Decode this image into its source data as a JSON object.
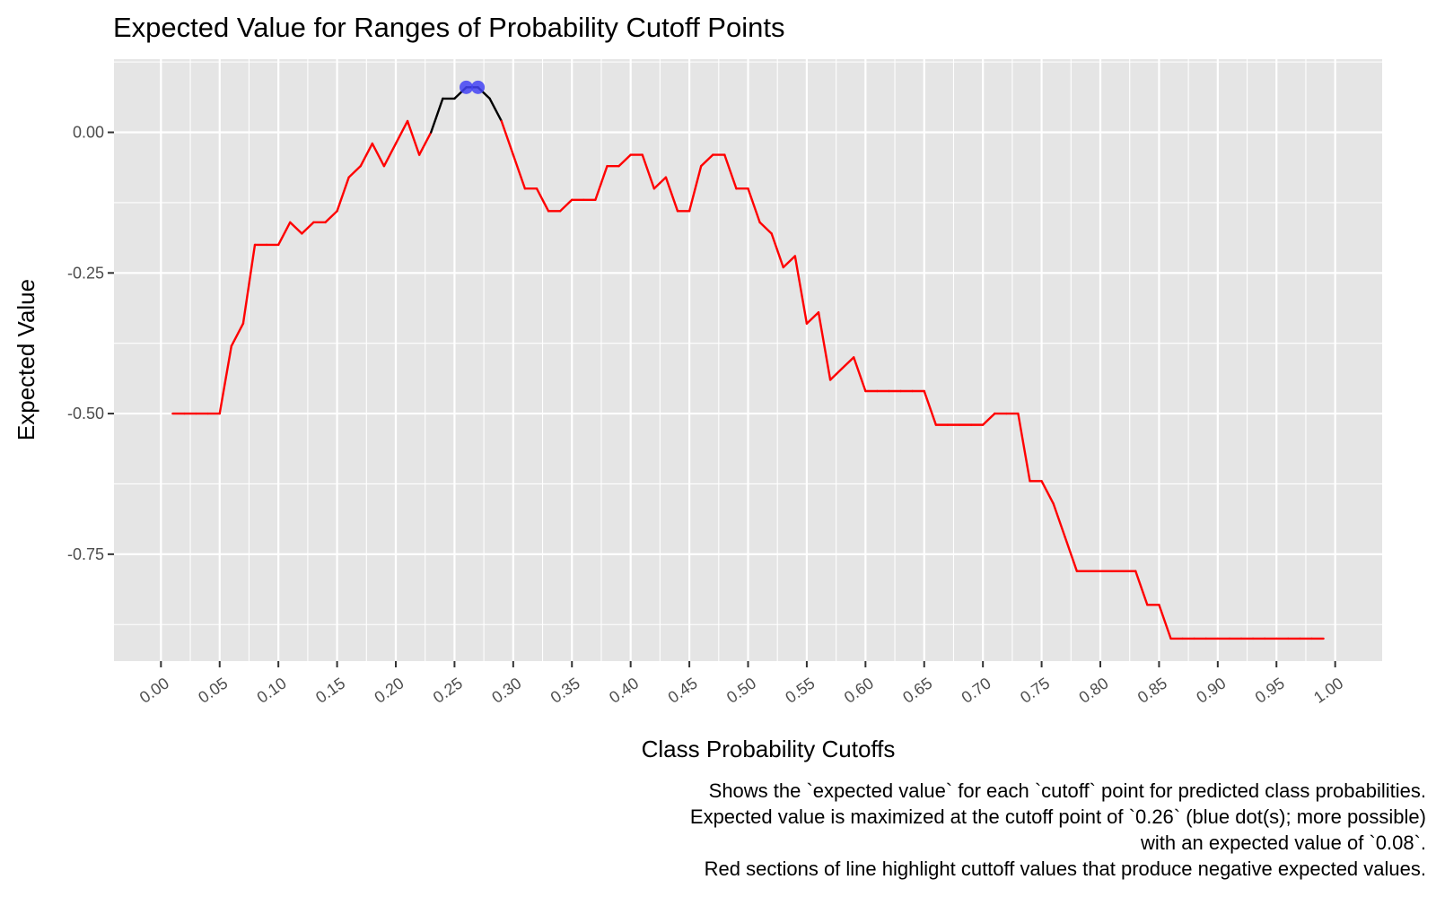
{
  "chart_data": {
    "type": "line",
    "title": "Expected Value for Ranges of Probability Cutoff Points",
    "xlabel": "Class Probability Cutoffs",
    "ylabel": "Expected Value",
    "xlim": [
      -0.04,
      1.04
    ],
    "ylim": [
      -0.94,
      0.13
    ],
    "x_ticks": [
      0.0,
      0.05,
      0.1,
      0.15,
      0.2,
      0.25,
      0.3,
      0.35,
      0.4,
      0.45,
      0.5,
      0.55,
      0.6,
      0.65,
      0.7,
      0.75,
      0.8,
      0.85,
      0.9,
      0.95,
      1.0
    ],
    "x_tick_labels": [
      "0.00",
      "0.05",
      "0.10",
      "0.15",
      "0.20",
      "0.25",
      "0.30",
      "0.35",
      "0.40",
      "0.45",
      "0.50",
      "0.55",
      "0.60",
      "0.65",
      "0.70",
      "0.75",
      "0.80",
      "0.85",
      "0.90",
      "0.95",
      "1.00"
    ],
    "y_ticks": [
      0.0,
      -0.25,
      -0.5,
      -0.75
    ],
    "y_tick_labels": [
      "0.00",
      "-0.25",
      "-0.50",
      "-0.75"
    ],
    "grid": true,
    "background_color": "#e5e5e5",
    "grid_color": "#ffffff",
    "negative_color": "#ff0000",
    "positive_color": "#000000",
    "max_point_color": "#4343f5",
    "x": [
      0.01,
      0.02,
      0.03,
      0.04,
      0.05,
      0.06,
      0.07,
      0.08,
      0.09,
      0.1,
      0.11,
      0.12,
      0.13,
      0.14,
      0.15,
      0.16,
      0.17,
      0.18,
      0.19,
      0.2,
      0.21,
      0.22,
      0.23,
      0.24,
      0.25,
      0.26,
      0.27,
      0.28,
      0.29,
      0.3,
      0.31,
      0.32,
      0.33,
      0.34,
      0.35,
      0.36,
      0.37,
      0.38,
      0.39,
      0.4,
      0.41,
      0.42,
      0.43,
      0.44,
      0.45,
      0.46,
      0.47,
      0.48,
      0.49,
      0.5,
      0.51,
      0.52,
      0.53,
      0.54,
      0.55,
      0.56,
      0.57,
      0.58,
      0.59,
      0.6,
      0.61,
      0.62,
      0.63,
      0.64,
      0.65,
      0.66,
      0.67,
      0.68,
      0.69,
      0.7,
      0.71,
      0.72,
      0.73,
      0.74,
      0.75,
      0.76,
      0.77,
      0.78,
      0.79,
      0.8,
      0.81,
      0.82,
      0.83,
      0.84,
      0.85,
      0.86,
      0.87,
      0.88,
      0.89,
      0.9,
      0.91,
      0.92,
      0.93,
      0.94,
      0.95,
      0.96,
      0.97,
      0.98,
      0.99
    ],
    "y": [
      -0.5,
      -0.5,
      -0.5,
      -0.5,
      -0.5,
      -0.38,
      -0.34,
      -0.2,
      -0.2,
      -0.2,
      -0.16,
      -0.18,
      -0.16,
      -0.16,
      -0.14,
      -0.08,
      -0.06,
      -0.02,
      -0.06,
      -0.02,
      0.02,
      -0.04,
      0.0,
      0.06,
      0.06,
      0.08,
      0.08,
      0.06,
      0.02,
      -0.04,
      -0.1,
      -0.1,
      -0.14,
      -0.14,
      -0.12,
      -0.12,
      -0.12,
      -0.06,
      -0.06,
      -0.04,
      -0.04,
      -0.1,
      -0.08,
      -0.14,
      -0.14,
      -0.06,
      -0.04,
      -0.04,
      -0.1,
      -0.1,
      -0.16,
      -0.18,
      -0.24,
      -0.22,
      -0.34,
      -0.32,
      -0.44,
      -0.42,
      -0.4,
      -0.46,
      -0.46,
      -0.46,
      -0.46,
      -0.46,
      -0.46,
      -0.52,
      -0.52,
      -0.52,
      -0.52,
      -0.52,
      -0.5,
      -0.5,
      -0.5,
      -0.62,
      -0.62,
      -0.66,
      -0.72,
      -0.78,
      -0.78,
      -0.78,
      -0.78,
      -0.78,
      -0.78,
      -0.84,
      -0.84,
      -0.9,
      -0.9,
      -0.9,
      -0.9,
      -0.9,
      -0.9,
      -0.9,
      -0.9,
      -0.9,
      -0.9,
      -0.9,
      -0.9,
      -0.9,
      -0.9
    ],
    "max_points": [
      {
        "x": 0.26,
        "y": 0.08
      },
      {
        "x": 0.27,
        "y": 0.08
      }
    ],
    "caption": [
      "Shows the `expected value` for each `cutoff` point for predicted class probabilities.",
      "Expected value is maximized at the cutoff point of `0.26` (blue dot(s); more possible)",
      "with an expected value of `0.08`.",
      "Red sections of line highlight cuttoff values that produce negative expected values."
    ]
  }
}
